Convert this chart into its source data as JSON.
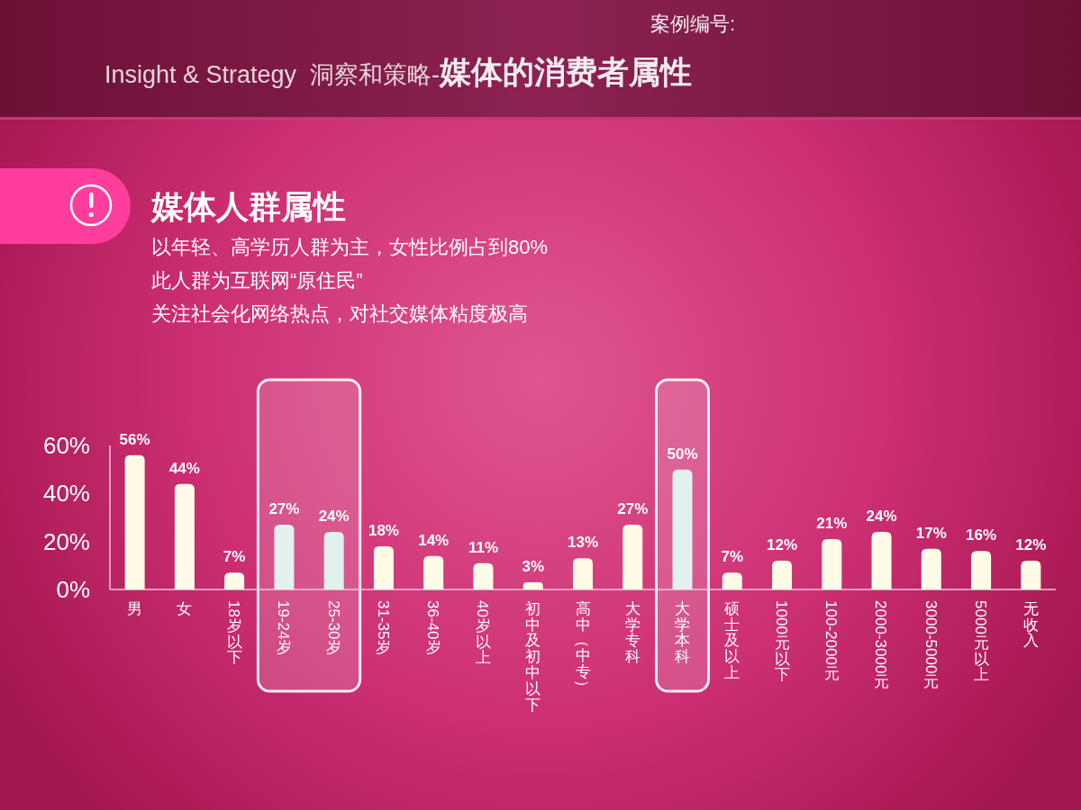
{
  "chart_data": {
    "type": "bar",
    "title": "Insight & Strategy  洞察和策略-**媒体的消费者属性**",
    "subtitle": "媒体人群属性",
    "annotations": [
      "案例编号:",
      "以年轻、高学历人群为主，女性比例占到80%",
      "此人群为互联网“原住民”",
      "关注社会化网络热点，对社交媒体粘度极高"
    ],
    "categories": [
      "男",
      "女",
      "18岁以下",
      "19-24岁",
      "25-30岁",
      "31-35岁",
      "36-40岁",
      "40岁以上",
      "初中及初中以下",
      "高中（中专）",
      "大学专科",
      "大学本科",
      "硕士及以上",
      "1000元以下",
      "100-2000元",
      "2000-3000元",
      "3000-5000元",
      "5000元以上",
      "无收入"
    ],
    "values": [
      56,
      44,
      7,
      27,
      24,
      18,
      14,
      11,
      3,
      13,
      27,
      50,
      7,
      12,
      21,
      24,
      17,
      16,
      12
    ],
    "value_labels": [
      "56%",
      "44%",
      "7%",
      "27%",
      "24%",
      "18%",
      "14%",
      "11%",
      "3%",
      "13%",
      "27%",
      "50%",
      "7%",
      "12%",
      "21%",
      "24%",
      "17%",
      "16%",
      "12%"
    ],
    "colors": [
      "#fffbe6",
      "#fffbe6",
      "#fffbe6",
      "#e2f0ee",
      "#e2f0ee",
      "#fffbe6",
      "#fffbe6",
      "#fffbe6",
      "#fffbe6",
      "#fffbe6",
      "#fffbe6",
      "#e2f0ee",
      "#fffbe6",
      "#fffbe6",
      "#fffbe6",
      "#fffbe6",
      "#fffbe6",
      "#fffbe6",
      "#fffbe6"
    ],
    "ylim": [
      0,
      60
    ],
    "yticks": [
      {
        "value": 0,
        "label": "0%"
      },
      {
        "value": 20,
        "label": "20%"
      },
      {
        "value": 40,
        "label": "40%"
      },
      {
        "value": 60,
        "label": "60%"
      }
    ],
    "bands": [
      {
        "axis": "x",
        "from": "19-24岁",
        "to": "25-30岁",
        "color": "#ffffff"
      },
      {
        "axis": "x",
        "from": "大学本科",
        "to": "大学本科",
        "color": "#ffffff"
      }
    ]
  }
}
